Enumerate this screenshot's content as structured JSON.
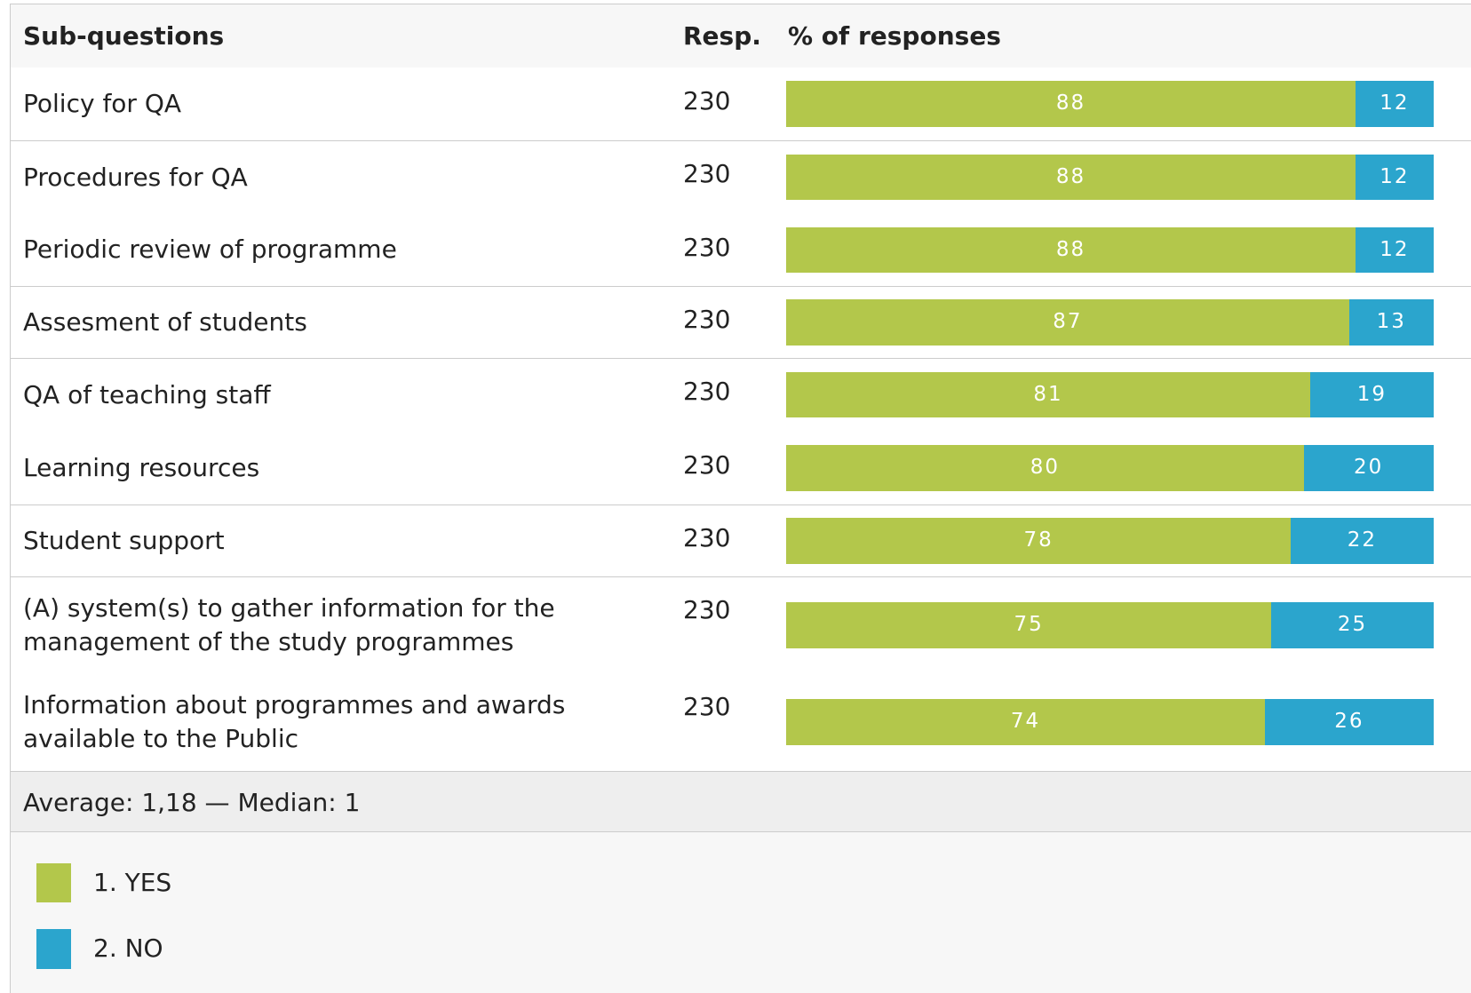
{
  "column_headers": [
    "Sub-questions",
    "Resp.",
    "% of responses"
  ],
  "chart_data": {
    "type": "bar",
    "orientation": "horizontal",
    "stacked": true,
    "categories": [
      "Policy for QA",
      "Procedures for QA",
      "Periodic review of programme",
      "Assesment of students",
      "QA of teaching staff",
      "Learning resources",
      "Student support",
      "(A) system(s) to gather information for the management of the study programmes",
      "Information about programmes and awards available to the Public"
    ],
    "responses": [
      230,
      230,
      230,
      230,
      230,
      230,
      230,
      230,
      230
    ],
    "series": [
      {
        "name": "1. YES",
        "color": "#b3c74b",
        "values": [
          88,
          88,
          88,
          87,
          81,
          80,
          78,
          75,
          74
        ]
      },
      {
        "name": "2. NO",
        "color": "#2ba5cd",
        "values": [
          12,
          12,
          12,
          13,
          19,
          20,
          22,
          25,
          26
        ]
      }
    ],
    "xlim": [
      0,
      100
    ]
  },
  "footer": "Average: 1,18 — Median: 1"
}
